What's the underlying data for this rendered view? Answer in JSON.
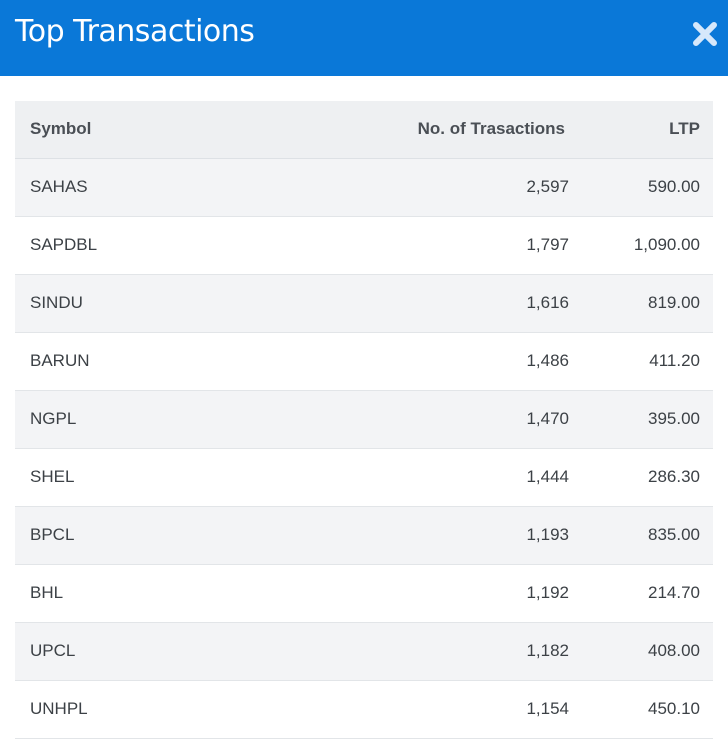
{
  "header": {
    "title": "Top Transactions",
    "close_icon": "close-icon",
    "background_color": "#0a78d8"
  },
  "table": {
    "columns": [
      "Symbol",
      "No. of Trasactions",
      "LTP"
    ],
    "rows": [
      {
        "symbol": "SAHAS",
        "transactions": "2,597",
        "ltp": "590.00"
      },
      {
        "symbol": "SAPDBL",
        "transactions": "1,797",
        "ltp": "1,090.00"
      },
      {
        "symbol": "SINDU",
        "transactions": "1,616",
        "ltp": "819.00"
      },
      {
        "symbol": "BARUN",
        "transactions": "1,486",
        "ltp": "411.20"
      },
      {
        "symbol": "NGPL",
        "transactions": "1,470",
        "ltp": "395.00"
      },
      {
        "symbol": "SHEL",
        "transactions": "1,444",
        "ltp": "286.30"
      },
      {
        "symbol": "BPCL",
        "transactions": "1,193",
        "ltp": "835.00"
      },
      {
        "symbol": "BHL",
        "transactions": "1,192",
        "ltp": "214.70"
      },
      {
        "symbol": "UPCL",
        "transactions": "1,182",
        "ltp": "408.00"
      },
      {
        "symbol": "UNHPL",
        "transactions": "1,154",
        "ltp": "450.10"
      }
    ]
  }
}
